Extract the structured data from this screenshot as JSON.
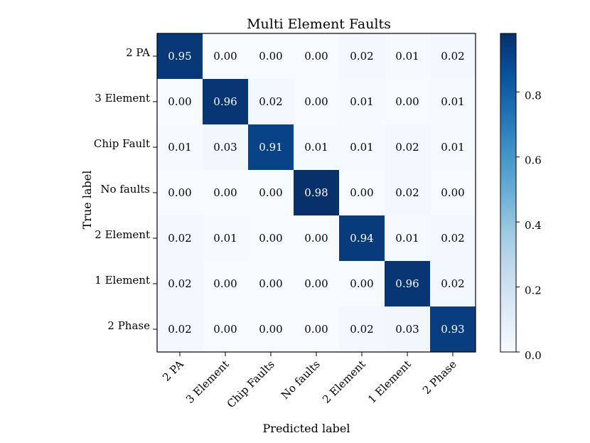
{
  "chart_data": {
    "type": "heatmap",
    "title": "Multi Element Faults",
    "xlabel": "Predicted label",
    "ylabel": "True label",
    "row_labels": [
      "2 PA",
      "3 Element",
      "Chip Fault",
      "No faults",
      "2 Element",
      "1 Element",
      "2 Phase"
    ],
    "col_labels": [
      "2 PA",
      "3 Element",
      "Chip Faults",
      "No faults",
      "2 Element",
      "1 Element",
      "2 Phase"
    ],
    "values": [
      [
        0.95,
        0.0,
        0.0,
        0.0,
        0.02,
        0.01,
        0.02
      ],
      [
        0.0,
        0.96,
        0.02,
        0.0,
        0.01,
        0.0,
        0.01
      ],
      [
        0.01,
        0.03,
        0.91,
        0.01,
        0.01,
        0.02,
        0.01
      ],
      [
        0.0,
        0.0,
        0.0,
        0.98,
        0.0,
        0.02,
        0.0
      ],
      [
        0.02,
        0.01,
        0.0,
        0.0,
        0.94,
        0.01,
        0.02
      ],
      [
        0.02,
        0.0,
        0.0,
        0.0,
        0.0,
        0.96,
        0.02
      ],
      [
        0.02,
        0.0,
        0.0,
        0.0,
        0.02,
        0.03,
        0.93
      ]
    ],
    "value_format": "0.00",
    "colorbar": {
      "colormap": "Blues",
      "range": [
        0,
        0.98
      ],
      "ticks": [
        0.0,
        0.2,
        0.4,
        0.6,
        0.8
      ],
      "tick_labels": [
        "0.0",
        "0.2",
        "0.4",
        "0.6",
        "0.8"
      ]
    },
    "colors": {
      "low": "#f7fbff",
      "high": "#08306b",
      "text_on_dark": "#ffffff",
      "text_on_light": "#000000"
    },
    "grid": false
  }
}
